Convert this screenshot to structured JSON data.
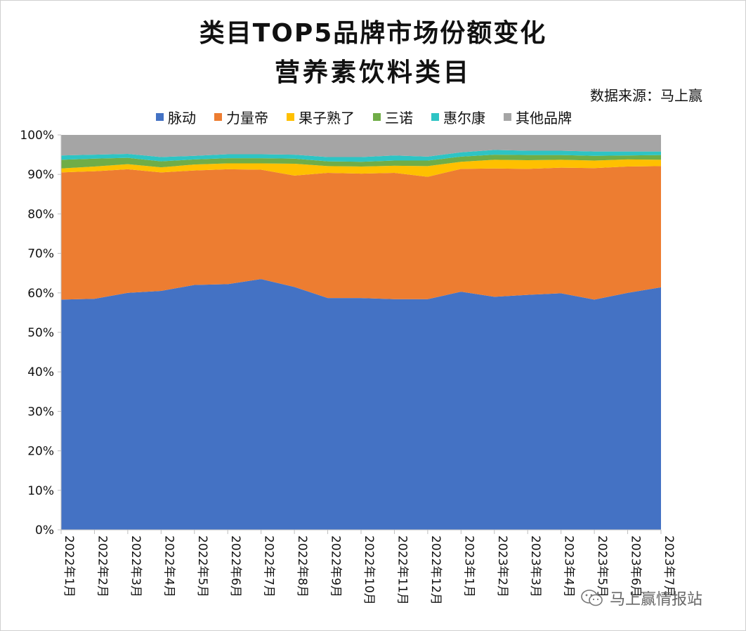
{
  "title_line1": "类目TOP5品牌市场份额变化",
  "title_line2": "营养素饮料类目",
  "source": "数据来源：马上赢",
  "watermark": "马上赢情报站",
  "chart_data": {
    "type": "area",
    "stacked": true,
    "percent": true,
    "title": "类目TOP5品牌市场份额变化 营养素饮料类目",
    "legend_position": "top",
    "categories": [
      "2022年1月",
      "2022年2月",
      "2022年3月",
      "2022年4月",
      "2022年5月",
      "2022年6月",
      "2022年7月",
      "2022年8月",
      "2022年9月",
      "2022年10月",
      "2022年11月",
      "2022年12月",
      "2023年1月",
      "2023年2月",
      "2023年3月",
      "2023年4月",
      "2023年5月",
      "2023年6月",
      "2023年7月"
    ],
    "y_ticks": [
      "0%",
      "10%",
      "20%",
      "30%",
      "40%",
      "50%",
      "60%",
      "70%",
      "80%",
      "90%",
      "100%"
    ],
    "ylim": [
      0,
      100
    ],
    "series": [
      {
        "name": "脉动",
        "color": "#4472C4",
        "values": [
          58.3,
          58.5,
          60.0,
          60.5,
          62.0,
          62.2,
          63.5,
          61.5,
          58.7,
          58.7,
          58.4,
          58.4,
          60.3,
          59.0,
          59.5,
          59.9,
          58.3,
          60.0,
          61.4
        ]
      },
      {
        "name": "力量帝",
        "color": "#ED7D31",
        "values": [
          32.2,
          32.3,
          31.3,
          30.0,
          29.0,
          29.1,
          27.7,
          28.2,
          31.7,
          31.5,
          32.0,
          31.0,
          31.1,
          32.5,
          31.9,
          31.8,
          33.3,
          32.0,
          30.7
        ]
      },
      {
        "name": "果子熟了",
        "color": "#FFC000",
        "values": [
          1.0,
          1.2,
          1.3,
          1.3,
          1.5,
          1.5,
          1.6,
          3.0,
          1.7,
          1.8,
          1.8,
          2.7,
          1.8,
          2.2,
          2.2,
          2.0,
          1.9,
          1.8,
          1.6
        ]
      },
      {
        "name": "三诺",
        "color": "#70AD47",
        "values": [
          2.2,
          2.0,
          1.6,
          1.5,
          1.3,
          1.3,
          1.3,
          1.3,
          1.2,
          1.2,
          1.3,
          1.4,
          1.3,
          1.3,
          1.3,
          1.2,
          1.2,
          1.0,
          1.2
        ]
      },
      {
        "name": "惠尔康",
        "color": "#2EC4C4",
        "values": [
          1.1,
          1.0,
          1.0,
          1.1,
          0.9,
          1.0,
          1.0,
          1.0,
          1.1,
          1.2,
          1.3,
          1.0,
          1.1,
          1.2,
          1.1,
          1.1,
          1.1,
          1.0,
          0.9
        ]
      },
      {
        "name": "其他品牌",
        "color": "#A5A5A5",
        "values": [
          5.2,
          5.0,
          4.8,
          5.6,
          5.3,
          4.9,
          4.9,
          5.0,
          5.6,
          5.6,
          5.2,
          5.5,
          4.4,
          3.8,
          4.0,
          4.0,
          4.2,
          4.2,
          4.2
        ]
      }
    ]
  }
}
